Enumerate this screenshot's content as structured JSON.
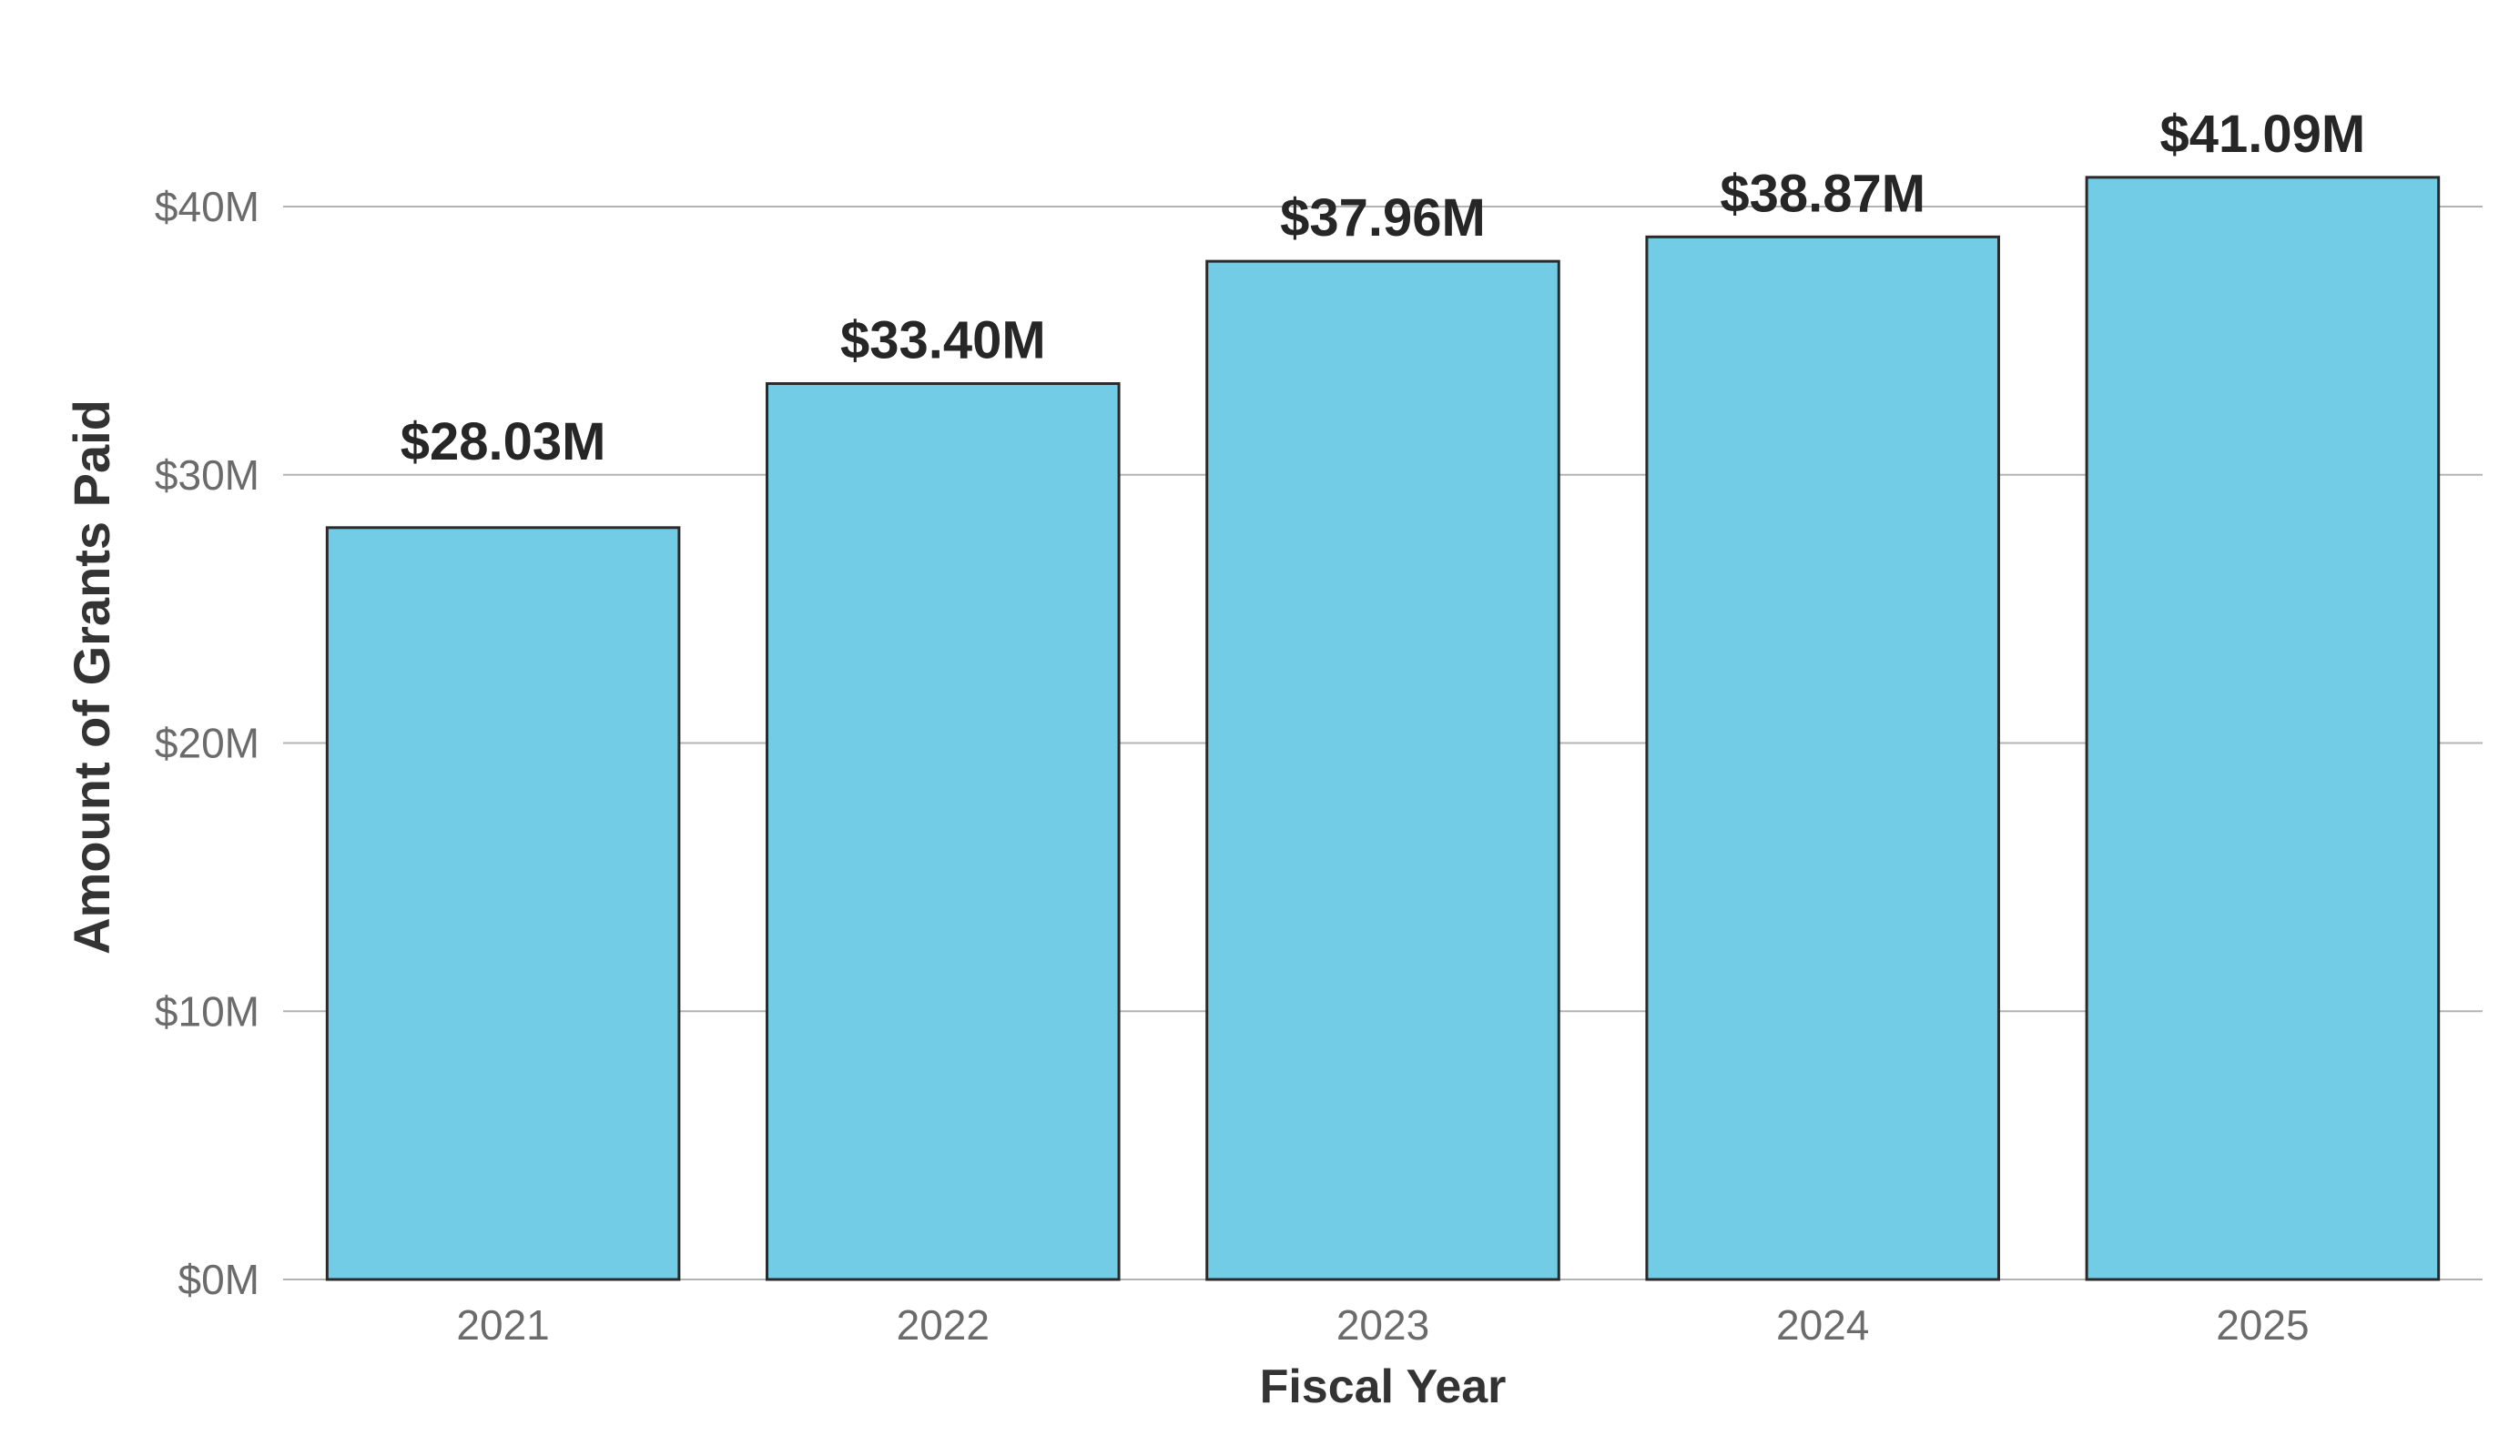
{
  "chart_data": {
    "type": "bar",
    "title": "",
    "xlabel": "Fiscal Year",
    "ylabel": "Amount of Grants Paid",
    "categories": [
      "2021",
      "2022",
      "2023",
      "2024",
      "2025"
    ],
    "values": [
      28.03,
      33.4,
      37.96,
      38.87,
      41.09
    ],
    "data_labels": [
      "$28.03M",
      "$33.40M",
      "$37.96M",
      "$38.87M",
      "$41.09M"
    ],
    "unit": "$M",
    "ylim": [
      0,
      40
    ],
    "yticks": [
      0,
      10,
      20,
      30,
      40
    ],
    "ytick_labels": [
      "$0M",
      "$10M",
      "$20M",
      "$30M",
      "$40M"
    ],
    "grid": true,
    "legend": "none",
    "colors": {
      "bar": "#73CCE5",
      "bar_edge": "#2a2a2a",
      "grid": "#b3b3b3"
    }
  }
}
